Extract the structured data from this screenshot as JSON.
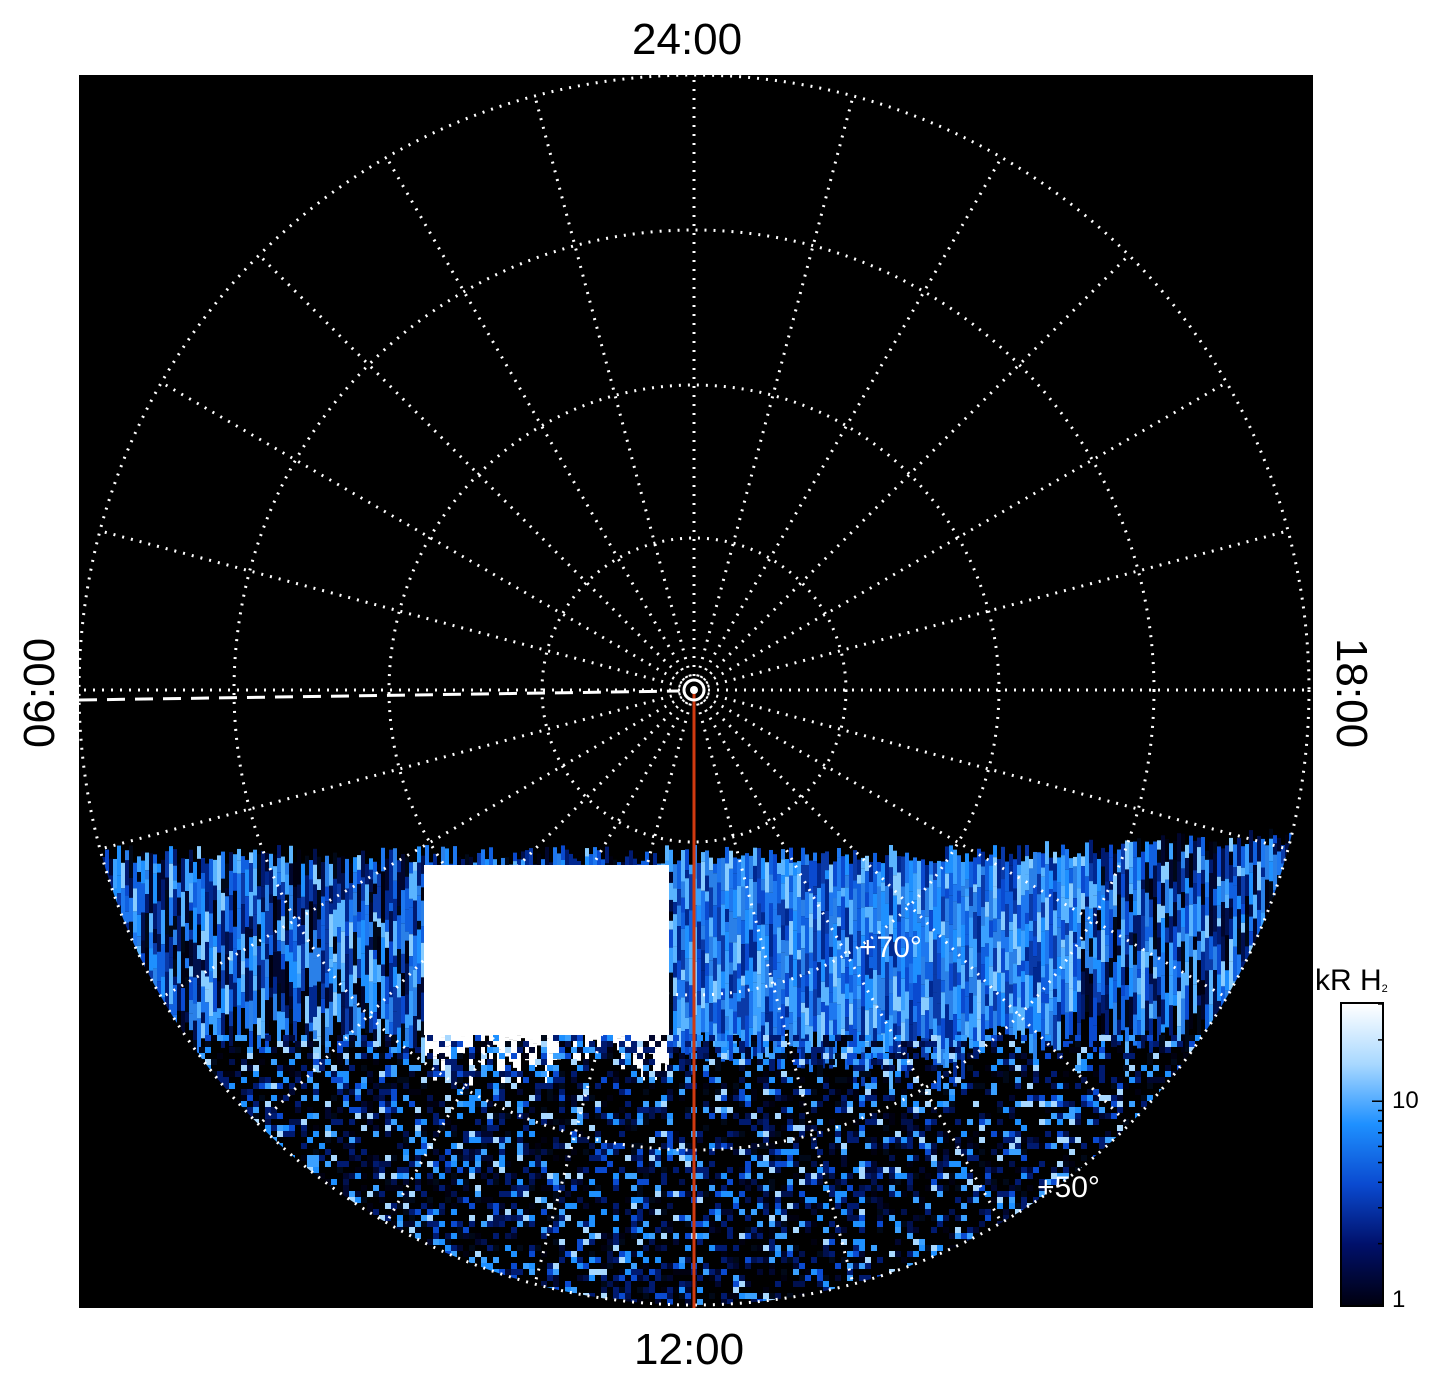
{
  "local_time_labels": {
    "top": "24:00",
    "bottom": "12:00",
    "left": "06:00",
    "right": "18:00"
  },
  "latitude_labels": [
    {
      "text": "+70°",
      "latitude": 70
    },
    {
      "text": "+50°",
      "latitude": 50
    }
  ],
  "colorbar": {
    "title_main": "kR H",
    "title_sub": "2",
    "tick_labels": [
      "10",
      "1"
    ],
    "scale": "log",
    "colors": [
      "#000010",
      "#00106a",
      "#0a4ad0",
      "#1e90ff",
      "#a8d8ff",
      "#ffffff"
    ]
  },
  "colors": {
    "background": "#000000",
    "grid": "#ffffff",
    "reference_line": "#d03a10"
  }
}
